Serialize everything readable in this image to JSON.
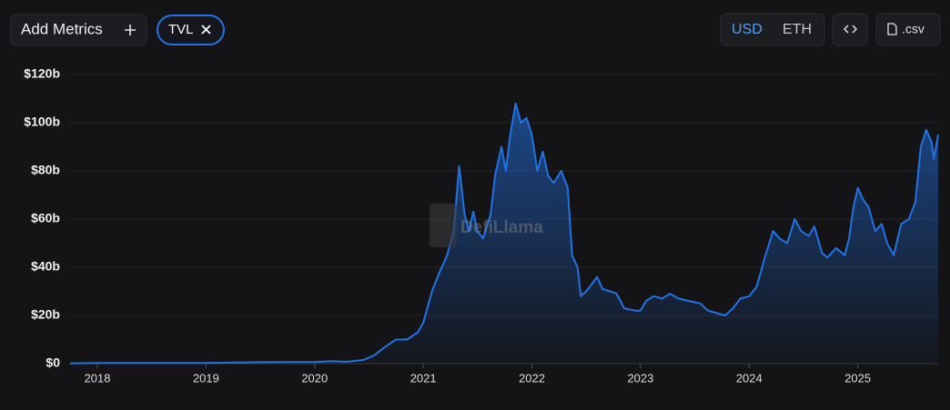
{
  "controls": {
    "add_metrics": "Add Metrics",
    "currencies": [
      "USD",
      "ETH"
    ],
    "csv": ".csv"
  },
  "watermark": "DefiLlama",
  "chart_data": {
    "type": "area",
    "x": [
      2017.75,
      2018.0,
      2018.5,
      2019.0,
      2019.5,
      2020.0,
      2020.15,
      2020.3,
      2020.45,
      2020.55,
      2020.65,
      2020.75,
      2020.85,
      2020.95,
      2021.0,
      2021.08,
      2021.15,
      2021.22,
      2021.28,
      2021.33,
      2021.38,
      2021.42,
      2021.46,
      2021.5,
      2021.55,
      2021.62,
      2021.66,
      2021.72,
      2021.76,
      2021.8,
      2021.85,
      2021.9,
      2021.95,
      2022.0,
      2022.05,
      2022.1,
      2022.15,
      2022.2,
      2022.27,
      2022.33,
      2022.37,
      2022.42,
      2022.45,
      2022.5,
      2022.55,
      2022.6,
      2022.65,
      2022.72,
      2022.78,
      2022.85,
      2022.95,
      2023.0,
      2023.05,
      2023.12,
      2023.2,
      2023.27,
      2023.35,
      2023.45,
      2023.55,
      2023.62,
      2023.7,
      2023.78,
      2023.85,
      2023.92,
      2024.0,
      2024.07,
      2024.15,
      2024.22,
      2024.28,
      2024.35,
      2024.42,
      2024.48,
      2024.55,
      2024.6,
      2024.67,
      2024.72,
      2024.8,
      2024.88,
      2024.92,
      2024.96,
      2025.0,
      2025.05,
      2025.1,
      2025.16,
      2025.22,
      2025.27,
      2025.33,
      2025.4,
      2025.47,
      2025.53,
      2025.58,
      2025.63,
      2025.68,
      2025.7,
      2025.74
    ],
    "series": [
      {
        "name": "TVL",
        "color": "#2172e5",
        "values": [
          0.1,
          0.3,
          0.3,
          0.3,
          0.6,
          0.7,
          1.0,
          0.8,
          1.5,
          3.5,
          7,
          10,
          10,
          13,
          17,
          30,
          38,
          45,
          55,
          82,
          62,
          55,
          63,
          55,
          52,
          62,
          78,
          90,
          80,
          95,
          108,
          100,
          102,
          95,
          80,
          88,
          78,
          75,
          80,
          73,
          45,
          40,
          28,
          30,
          33,
          36,
          31,
          30,
          29,
          23,
          22,
          22,
          26,
          28,
          27,
          29,
          27,
          26,
          25,
          22,
          21,
          20,
          23,
          27,
          28,
          32,
          45,
          55,
          52,
          50,
          60,
          55,
          53,
          57,
          46,
          44,
          48,
          45,
          52,
          65,
          73,
          68,
          65,
          55,
          58,
          50,
          45,
          58,
          60,
          67,
          90,
          97,
          92,
          85,
          95
        ]
      }
    ],
    "xlim": [
      2017.74,
      2025.74
    ],
    "xticks": [
      2018,
      2019,
      2020,
      2021,
      2022,
      2023,
      2024,
      2025
    ],
    "ylim": [
      0,
      120
    ],
    "yticks": [
      {
        "value": 0,
        "label": "$0"
      },
      {
        "value": 20,
        "label": "$20b"
      },
      {
        "value": 40,
        "label": "$40b"
      },
      {
        "value": 60,
        "label": "$60b"
      },
      {
        "value": 80,
        "label": "$80b"
      },
      {
        "value": 100,
        "label": "$100b"
      },
      {
        "value": 120,
        "label": "$120b"
      }
    ],
    "grid": true
  }
}
